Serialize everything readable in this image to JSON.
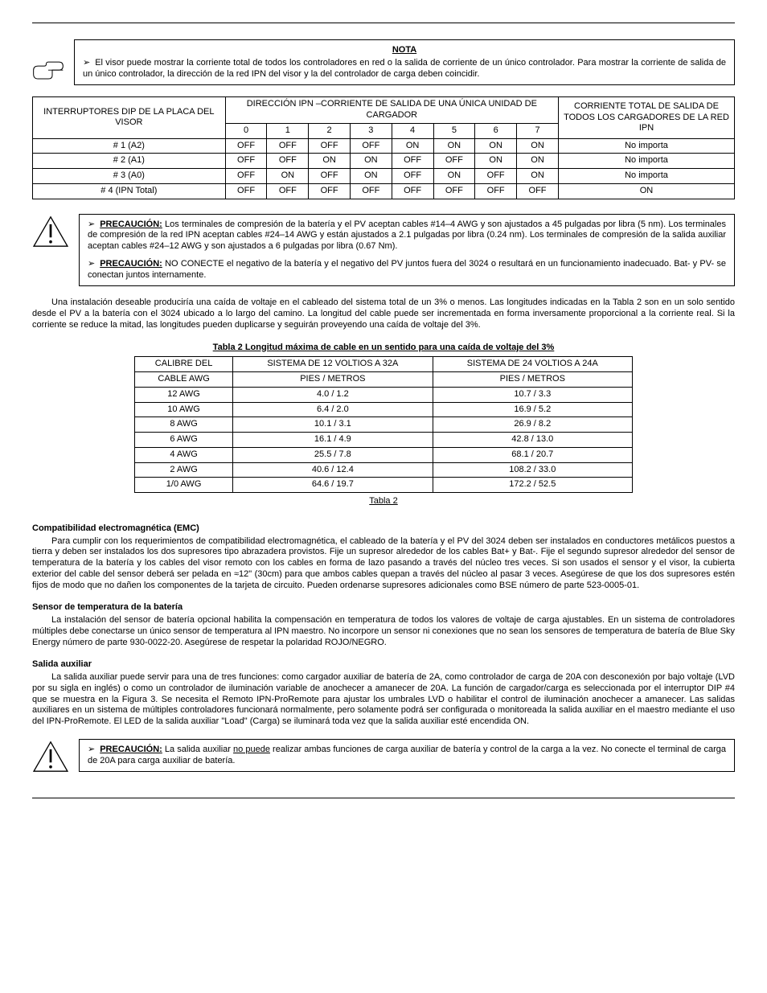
{
  "note": {
    "heading": "NOTA",
    "text": "El visor puede mostrar la corriente total de todos los controladores en red o la salida de corriente de un único controlador. Para mostrar la corriente de salida de un único controlador, la dirección de la red IPN del visor y la del controlador de carga deben coincidir."
  },
  "dipTable": {
    "leftHeader": "INTERRUPTORES DIP DE LA PLACA DEL VISOR",
    "midHeader": "DIRECCIÓN IPN  –CORRIENTE DE SALIDA DE UNA ÚNICA UNIDAD DE CARGADOR",
    "rightHeader": "CORRIENTE TOTAL DE SALIDA DE TODOS LOS CARGADORES DE LA RED IPN",
    "cols": [
      "0",
      "1",
      "2",
      "3",
      "4",
      "5",
      "6",
      "7"
    ],
    "rows": [
      {
        "name": "# 1  (A2)",
        "cells": [
          "OFF",
          "OFF",
          "OFF",
          "OFF",
          "ON",
          "ON",
          "ON",
          "ON"
        ],
        "total": "No importa"
      },
      {
        "name": "# 2  (A1)",
        "cells": [
          "OFF",
          "OFF",
          "ON",
          "ON",
          "OFF",
          "OFF",
          "ON",
          "ON"
        ],
        "total": "No importa"
      },
      {
        "name": "# 3  (A0)",
        "cells": [
          "OFF",
          "ON",
          "OFF",
          "ON",
          "OFF",
          "ON",
          "OFF",
          "ON"
        ],
        "total": "No importa"
      },
      {
        "name": "# 4  (IPN Total)",
        "cells": [
          "OFF",
          "OFF",
          "OFF",
          "OFF",
          "OFF",
          "OFF",
          "OFF",
          "OFF"
        ],
        "total": "ON"
      }
    ]
  },
  "caution1": {
    "label1": "PRECAUCIÓN:",
    "text1": " Los terminales de compresión de la batería y el PV aceptan cables #14–4 AWG y son ajustados a 45 pulgadas por libra (5 nm). Los terminales de compresión de la red IPN aceptan cables #24–14 AWG y están ajustados a 2.1 pulgadas por libra (0.24 nm). Los terminales de compresión de la salida auxiliar aceptan cables #24–12 AWG y son ajustados a 6 pulgadas por libra (0.67 Nm).",
    "label2": "PRECAUCIÓN:",
    "text2": " NO CONECTE el negativo de la batería y el negativo del PV juntos fuera del 3024 o resultará en un funcionamiento inadecuado. Bat- y PV- se conectan juntos internamente."
  },
  "para1": "Una instalación deseable produciría una caída de voltaje en el cableado del sistema total de un 3% o menos. Las longitudes indicadas en la Tabla 2 son en un solo sentido desde el PV a la batería con el 3024 ubicado a lo largo del camino. La longitud del cable puede ser incrementada en forma inversamente proporcional a la corriente real. Si la corriente se reduce la mitad, las longitudes pueden duplicarse y seguirán proveyendo una caída de voltaje del 3%.",
  "table2": {
    "title": "Tabla 2 Longitud máxima de cable en un sentido para una caída de voltaje del 3%",
    "headers": [
      "CALIBRE DEL CABLE AWG",
      "SISTEMA DE 12 VOLTIOS A 32A PIES / METROS",
      "SISTEMA DE 24 VOLTIOS A 24A PIES / METROS"
    ],
    "headers_l1": [
      "CALIBRE DEL",
      "SISTEMA DE 12 VOLTIOS A 32A",
      "SISTEMA DE 24 VOLTIOS A 24A"
    ],
    "headers_l2": [
      "CABLE AWG",
      "PIES / METROS",
      "PIES / METROS"
    ],
    "rows": [
      [
        "12 AWG",
        "4.0 / 1.2",
        "10.7 / 3.3"
      ],
      [
        "10 AWG",
        "6.4 / 2.0",
        "16.9 / 5.2"
      ],
      [
        "8 AWG",
        "10.1 / 3.1",
        "26.9 / 8.2"
      ],
      [
        "6 AWG",
        "16.1 / 4.9",
        "42.8 / 13.0"
      ],
      [
        "4 AWG",
        "25.5 / 7.8",
        "68.1 / 20.7"
      ],
      [
        "2 AWG",
        "40.6 / 12.4",
        "108.2 / 33.0"
      ],
      [
        "1/0 AWG",
        "64.6 / 19.7",
        "172.2 / 52.5"
      ]
    ],
    "footer": "Tabla 2"
  },
  "secEMC": {
    "title": "Compatibilidad electromagnética (EMC)",
    "text": "Para cumplir con los requerimientos de compatibilidad electromagnética, el cableado de la batería y el PV del 3024 deben ser instalados en conductores metálicos puestos a tierra y deben ser instalados los dos supresores tipo abrazadera provistos. Fije un supresor alrededor de los cables Bat+ y Bat-. Fije el segundo supresor alrededor del sensor de temperatura de la batería y los cables del visor remoto con los cables en forma de lazo pasando a través del núcleo tres veces. Si son usados el sensor y el visor, la cubierta exterior del cable del sensor deberá ser pelada en ≈12\" (30cm) para que ambos cables quepan a través del núcleo al pasar 3 veces. Asegúrese de que los dos supresores estén fijos de modo que no dañen los componentes de la tarjeta de circuito. Pueden ordenarse supresores adicionales como BSE número de parte 523-0005-01."
  },
  "secSensor": {
    "title": "Sensor de temperatura de la batería",
    "text": "La instalación del sensor de batería opcional habilita la compensación en temperatura de todos los valores de voltaje de carga ajustables. En un sistema de controladores múltiples debe conectarse un único sensor de temperatura al IPN maestro. No incorpore un sensor ni conexiones que no sean los sensores de temperatura de batería de Blue Sky Energy número de parte 930-0022-20. Asegúrese de respetar la polaridad ROJO/NEGRO."
  },
  "secAux": {
    "title": "Salida auxiliar",
    "text": "La salida auxiliar puede servir para una de tres funciones: como cargador auxiliar de batería de 2A, como controlador de carga de 20A con desconexión por bajo voltaje (LVD por su sigla en inglés) o como un controlador de iluminación variable de anochecer a amanecer de 20A. La función de cargador/carga es seleccionada por el interruptor DIP #4 que se muestra en la Figura 3. Se necesita el Remoto IPN-ProRemote para ajustar los umbrales LVD o habilitar el control de iluminación anochecer a amanecer. Las salidas auxiliares en un sistema de múltiples controladores funcionará normalmente, pero solamente podrá ser configurada o monitoreada la salida auxiliar en el maestro mediante el uso del IPN-ProRemote. El LED de la salida auxiliar \"Load\" (Carga) se iluminará toda vez que la salida auxiliar esté encendida ON."
  },
  "caution2": {
    "label": "PRECAUCIÓN:",
    "t_pre": " La salida auxiliar ",
    "t_u": "no puede",
    "t_post": " realizar ambas funciones de carga auxiliar de batería y control de la carga a la vez. No conecte el terminal de carga de 20A para carga auxiliar de batería."
  }
}
